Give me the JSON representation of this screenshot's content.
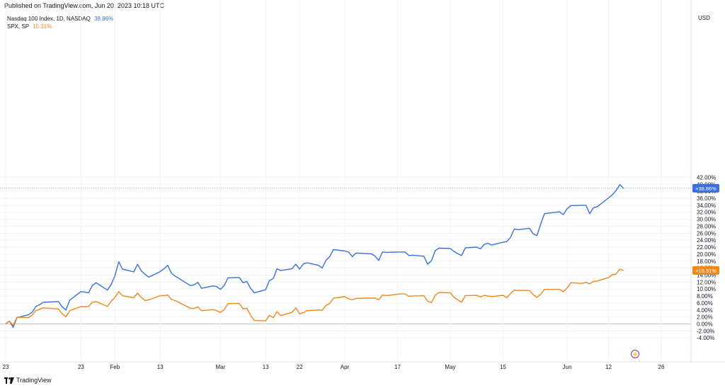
{
  "header": {
    "published": "Published on TradingView.com, Jun 20, 2023 10:18 UTC"
  },
  "legend": [
    {
      "label": "Nasdaq 100 Index, 1D, NASDAQ",
      "value": "38.86%",
      "color": "#3a6fe0"
    },
    {
      "label": "SPX, SP",
      "value": "15.31%",
      "color": "#f0891a"
    }
  ],
  "footer": {
    "brand": "TradingView"
  },
  "chart_data": {
    "type": "line",
    "currency": "USD",
    "ylim": [
      -5,
      43
    ],
    "y_ticks": [
      42,
      40,
      38,
      36,
      34,
      32,
      30,
      28,
      26,
      24,
      22,
      20,
      18,
      16,
      14,
      12,
      10,
      8,
      6,
      4,
      2,
      0,
      -2,
      -4
    ],
    "y_tick_labels": [
      "42.00%",
      "40.00%",
      "38.00%",
      "36.00%",
      "34.00%",
      "32.00%",
      "30.00%",
      "28.00%",
      "26.00%",
      "24.00%",
      "22.00%",
      "20.00%",
      "18.00%",
      "16.00%",
      "14.00%",
      "12.00%",
      "10.00%",
      "8.00%",
      "6.00%",
      "4.00%",
      "2.00%",
      "0.00%",
      "-2.00%",
      "-4.00%"
    ],
    "x_ticks": [
      {
        "label": "23",
        "date": "2023-01-03"
      },
      {
        "label": "23",
        "date": "2023-01-23"
      },
      {
        "label": "Feb",
        "date": "2023-02-01"
      },
      {
        "label": "13",
        "date": "2023-02-13"
      },
      {
        "label": "Mar",
        "date": "2023-03-01"
      },
      {
        "label": "13",
        "date": "2023-03-13"
      },
      {
        "label": "22",
        "date": "2023-03-22"
      },
      {
        "label": "Apr",
        "date": "2023-04-03"
      },
      {
        "label": "17",
        "date": "2023-04-17"
      },
      {
        "label": "May",
        "date": "2023-05-01"
      },
      {
        "label": "15",
        "date": "2023-05-15"
      },
      {
        "label": "Jun",
        "date": "2023-06-01"
      },
      {
        "label": "12",
        "date": "2023-06-12"
      },
      {
        "label": "26",
        "date": "2023-06-26"
      }
    ],
    "series": [
      {
        "name": "Nasdaq 100 Index, 1D, NASDAQ",
        "color": "#3a6fe0",
        "last_label": "+38.86%",
        "points": [
          [
            "2023-01-03",
            0.0
          ],
          [
            "2023-01-04",
            0.8
          ],
          [
            "2023-01-05",
            -1.0
          ],
          [
            "2023-01-06",
            1.8
          ],
          [
            "2023-01-09",
            2.6
          ],
          [
            "2023-01-10",
            3.3
          ],
          [
            "2023-01-11",
            5.0
          ],
          [
            "2023-01-12",
            5.5
          ],
          [
            "2023-01-13",
            6.2
          ],
          [
            "2023-01-17",
            6.4
          ],
          [
            "2023-01-18",
            4.9
          ],
          [
            "2023-01-19",
            4.0
          ],
          [
            "2023-01-20",
            6.8
          ],
          [
            "2023-01-23",
            9.3
          ],
          [
            "2023-01-24",
            9.1
          ],
          [
            "2023-01-25",
            8.9
          ],
          [
            "2023-01-26",
            11.0
          ],
          [
            "2023-01-27",
            11.8
          ],
          [
            "2023-01-30",
            9.7
          ],
          [
            "2023-01-31",
            11.3
          ],
          [
            "2023-02-01",
            13.8
          ],
          [
            "2023-02-02",
            17.8
          ],
          [
            "2023-02-03",
            15.7
          ],
          [
            "2023-02-06",
            14.9
          ],
          [
            "2023-02-07",
            17.1
          ],
          [
            "2023-02-08",
            15.2
          ],
          [
            "2023-02-09",
            14.2
          ],
          [
            "2023-02-10",
            13.4
          ],
          [
            "2023-02-13",
            15.0
          ],
          [
            "2023-02-14",
            15.8
          ],
          [
            "2023-02-15",
            16.8
          ],
          [
            "2023-02-16",
            14.5
          ],
          [
            "2023-02-17",
            13.7
          ],
          [
            "2023-02-21",
            11.0
          ],
          [
            "2023-02-22",
            11.2
          ],
          [
            "2023-02-23",
            11.9
          ],
          [
            "2023-02-24",
            10.2
          ],
          [
            "2023-02-27",
            10.9
          ],
          [
            "2023-02-28",
            10.7
          ],
          [
            "2023-03-01",
            9.9
          ],
          [
            "2023-03-02",
            11.0
          ],
          [
            "2023-03-03",
            13.2
          ],
          [
            "2023-03-06",
            13.3
          ],
          [
            "2023-03-07",
            11.8
          ],
          [
            "2023-03-08",
            12.2
          ],
          [
            "2023-03-09",
            10.2
          ],
          [
            "2023-03-10",
            8.9
          ],
          [
            "2023-03-13",
            9.8
          ],
          [
            "2023-03-14",
            12.4
          ],
          [
            "2023-03-15",
            13.0
          ],
          [
            "2023-03-16",
            15.8
          ],
          [
            "2023-03-17",
            15.3
          ],
          [
            "2023-03-20",
            15.8
          ],
          [
            "2023-03-21",
            17.1
          ],
          [
            "2023-03-22",
            15.7
          ],
          [
            "2023-03-23",
            17.2
          ],
          [
            "2023-03-24",
            17.5
          ],
          [
            "2023-03-27",
            16.8
          ],
          [
            "2023-03-28",
            16.0
          ],
          [
            "2023-03-29",
            18.2
          ],
          [
            "2023-03-30",
            19.3
          ],
          [
            "2023-03-31",
            21.3
          ],
          [
            "2023-04-03",
            20.9
          ],
          [
            "2023-04-04",
            20.6
          ],
          [
            "2023-04-05",
            19.3
          ],
          [
            "2023-04-06",
            20.3
          ],
          [
            "2023-04-10",
            20.1
          ],
          [
            "2023-04-11",
            19.5
          ],
          [
            "2023-04-12",
            18.2
          ],
          [
            "2023-04-13",
            20.6
          ],
          [
            "2023-04-14",
            20.5
          ],
          [
            "2023-04-17",
            20.6
          ],
          [
            "2023-04-18",
            20.6
          ],
          [
            "2023-04-19",
            20.6
          ],
          [
            "2023-04-20",
            19.6
          ],
          [
            "2023-04-21",
            19.7
          ],
          [
            "2023-04-24",
            19.4
          ],
          [
            "2023-04-25",
            17.1
          ],
          [
            "2023-04-26",
            18.1
          ],
          [
            "2023-04-27",
            21.0
          ],
          [
            "2023-04-28",
            21.7
          ],
          [
            "2023-05-01",
            21.6
          ],
          [
            "2023-05-02",
            20.8
          ],
          [
            "2023-05-03",
            20.1
          ],
          [
            "2023-05-04",
            19.6
          ],
          [
            "2023-05-05",
            21.8
          ],
          [
            "2023-05-08",
            22.0
          ],
          [
            "2023-05-09",
            21.5
          ],
          [
            "2023-05-10",
            22.8
          ],
          [
            "2023-05-11",
            23.1
          ],
          [
            "2023-05-12",
            22.6
          ],
          [
            "2023-05-15",
            23.4
          ],
          [
            "2023-05-16",
            23.6
          ],
          [
            "2023-05-17",
            24.8
          ],
          [
            "2023-05-18",
            27.2
          ],
          [
            "2023-05-19",
            27.0
          ],
          [
            "2023-05-22",
            27.4
          ],
          [
            "2023-05-23",
            25.8
          ],
          [
            "2023-05-24",
            25.3
          ],
          [
            "2023-05-25",
            28.6
          ],
          [
            "2023-05-26",
            31.6
          ],
          [
            "2023-05-30",
            32.1
          ],
          [
            "2023-05-31",
            31.3
          ],
          [
            "2023-06-01",
            33.0
          ],
          [
            "2023-06-02",
            33.9
          ],
          [
            "2023-06-05",
            34.0
          ],
          [
            "2023-06-06",
            34.0
          ],
          [
            "2023-06-07",
            31.6
          ],
          [
            "2023-06-08",
            33.3
          ],
          [
            "2023-06-09",
            33.6
          ],
          [
            "2023-06-12",
            36.1
          ],
          [
            "2023-06-13",
            37.0
          ],
          [
            "2023-06-14",
            38.2
          ],
          [
            "2023-06-15",
            39.9
          ],
          [
            "2023-06-16",
            38.86
          ]
        ]
      },
      {
        "name": "SPX, SP",
        "color": "#f0891a",
        "last_label": "+15.31%",
        "points": [
          [
            "2023-01-03",
            0.0
          ],
          [
            "2023-01-04",
            0.8
          ],
          [
            "2023-01-05",
            -0.4
          ],
          [
            "2023-01-06",
            1.9
          ],
          [
            "2023-01-09",
            1.8
          ],
          [
            "2023-01-10",
            2.5
          ],
          [
            "2023-01-11",
            3.8
          ],
          [
            "2023-01-12",
            4.2
          ],
          [
            "2023-01-13",
            4.6
          ],
          [
            "2023-01-17",
            4.3
          ],
          [
            "2023-01-18",
            2.9
          ],
          [
            "2023-01-19",
            2.0
          ],
          [
            "2023-01-20",
            3.8
          ],
          [
            "2023-01-23",
            5.0
          ],
          [
            "2023-01-24",
            4.9
          ],
          [
            "2023-01-25",
            5.0
          ],
          [
            "2023-01-26",
            6.2
          ],
          [
            "2023-01-27",
            6.4
          ],
          [
            "2023-01-30",
            5.0
          ],
          [
            "2023-01-31",
            6.5
          ],
          [
            "2023-02-01",
            7.6
          ],
          [
            "2023-02-02",
            9.3
          ],
          [
            "2023-02-03",
            8.1
          ],
          [
            "2023-02-06",
            7.5
          ],
          [
            "2023-02-07",
            8.8
          ],
          [
            "2023-02-08",
            7.6
          ],
          [
            "2023-02-09",
            6.7
          ],
          [
            "2023-02-10",
            6.9
          ],
          [
            "2023-02-13",
            8.1
          ],
          [
            "2023-02-14",
            8.1
          ],
          [
            "2023-02-15",
            8.3
          ],
          [
            "2023-02-16",
            7.0
          ],
          [
            "2023-02-17",
            6.7
          ],
          [
            "2023-02-21",
            4.5
          ],
          [
            "2023-02-22",
            4.4
          ],
          [
            "2023-02-23",
            4.9
          ],
          [
            "2023-02-24",
            3.8
          ],
          [
            "2023-02-27",
            4.1
          ],
          [
            "2023-02-28",
            3.8
          ],
          [
            "2023-03-01",
            3.3
          ],
          [
            "2023-03-02",
            4.1
          ],
          [
            "2023-03-03",
            5.8
          ],
          [
            "2023-03-06",
            5.9
          ],
          [
            "2023-03-07",
            4.3
          ],
          [
            "2023-03-08",
            4.5
          ],
          [
            "2023-03-09",
            2.5
          ],
          [
            "2023-03-10",
            1.0
          ],
          [
            "2023-03-13",
            0.9
          ],
          [
            "2023-03-14",
            2.5
          ],
          [
            "2023-03-15",
            1.8
          ],
          [
            "2023-03-16",
            3.5
          ],
          [
            "2023-03-17",
            2.4
          ],
          [
            "2023-03-20",
            3.3
          ],
          [
            "2023-03-21",
            4.6
          ],
          [
            "2023-03-22",
            2.9
          ],
          [
            "2023-03-23",
            3.2
          ],
          [
            "2023-03-24",
            3.8
          ],
          [
            "2023-03-27",
            4.0
          ],
          [
            "2023-03-28",
            3.9
          ],
          [
            "2023-03-29",
            5.3
          ],
          [
            "2023-03-30",
            5.9
          ],
          [
            "2023-03-31",
            7.4
          ],
          [
            "2023-04-03",
            7.8
          ],
          [
            "2023-04-04",
            7.2
          ],
          [
            "2023-04-05",
            6.9
          ],
          [
            "2023-04-06",
            7.3
          ],
          [
            "2023-04-10",
            7.4
          ],
          [
            "2023-04-11",
            7.4
          ],
          [
            "2023-04-12",
            6.9
          ],
          [
            "2023-04-13",
            8.3
          ],
          [
            "2023-04-14",
            8.1
          ],
          [
            "2023-04-17",
            8.5
          ],
          [
            "2023-04-18",
            8.6
          ],
          [
            "2023-04-19",
            8.6
          ],
          [
            "2023-04-20",
            7.9
          ],
          [
            "2023-04-21",
            8.0
          ],
          [
            "2023-04-24",
            8.1
          ],
          [
            "2023-04-25",
            6.5
          ],
          [
            "2023-04-26",
            6.1
          ],
          [
            "2023-04-27",
            8.2
          ],
          [
            "2023-04-28",
            9.0
          ],
          [
            "2023-05-01",
            8.9
          ],
          [
            "2023-05-02",
            7.6
          ],
          [
            "2023-05-03",
            6.9
          ],
          [
            "2023-05-04",
            6.2
          ],
          [
            "2023-05-05",
            8.1
          ],
          [
            "2023-05-08",
            8.2
          ],
          [
            "2023-05-09",
            7.7
          ],
          [
            "2023-05-10",
            8.2
          ],
          [
            "2023-05-11",
            8.0
          ],
          [
            "2023-05-12",
            7.8
          ],
          [
            "2023-05-15",
            8.2
          ],
          [
            "2023-05-16",
            7.5
          ],
          [
            "2023-05-17",
            8.7
          ],
          [
            "2023-05-18",
            9.7
          ],
          [
            "2023-05-19",
            9.6
          ],
          [
            "2023-05-22",
            9.6
          ],
          [
            "2023-05-23",
            8.4
          ],
          [
            "2023-05-24",
            7.6
          ],
          [
            "2023-05-25",
            8.5
          ],
          [
            "2023-05-26",
            9.9
          ],
          [
            "2023-05-30",
            9.9
          ],
          [
            "2023-05-31",
            9.2
          ],
          [
            "2023-06-01",
            10.3
          ],
          [
            "2023-06-02",
            11.8
          ],
          [
            "2023-06-05",
            11.6
          ],
          [
            "2023-06-06",
            11.9
          ],
          [
            "2023-06-07",
            11.5
          ],
          [
            "2023-06-08",
            12.2
          ],
          [
            "2023-06-09",
            12.3
          ],
          [
            "2023-06-12",
            13.3
          ],
          [
            "2023-06-13",
            14.1
          ],
          [
            "2023-06-14",
            14.3
          ],
          [
            "2023-06-15",
            15.7
          ],
          [
            "2023-06-16",
            15.31
          ]
        ]
      }
    ]
  }
}
